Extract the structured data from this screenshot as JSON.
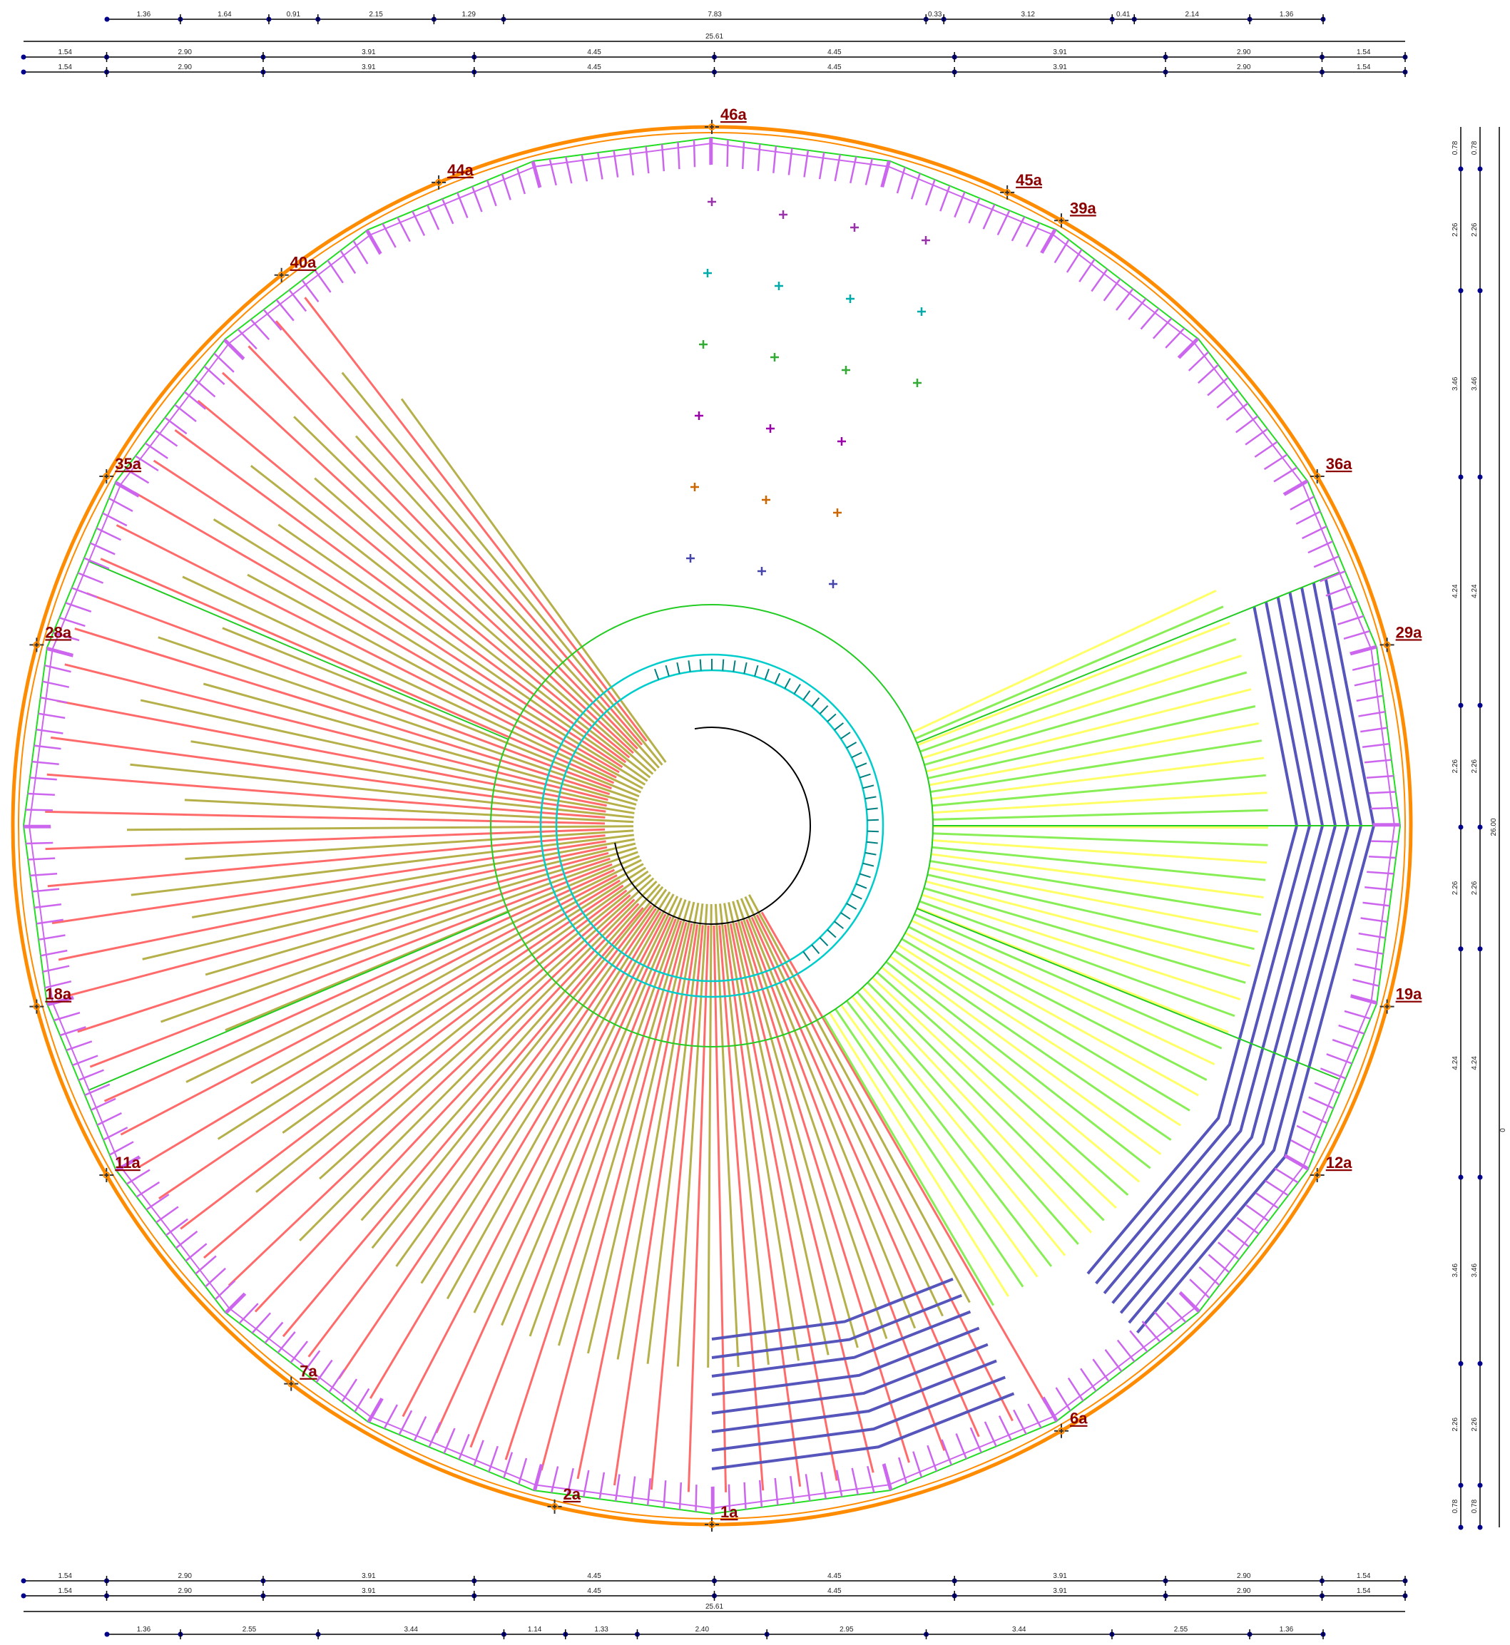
{
  "colors": {
    "outer_circle": "#ff8c00",
    "polygon": "#22dd22",
    "ring_green": "#22cc22",
    "ring_cyan": "#00cccc",
    "ring_black": "#000000",
    "tick_teal": "#008080",
    "radial_red": "#ff6b6b",
    "radial_olive": "#b5b04a",
    "radial_yellow": "#ffff66",
    "radial_lightgreen": "#88ee55",
    "radial_blue": "#5555bb",
    "edge_purple": "#cc66ee",
    "axis_label": "#8b0000",
    "dim_line": "#000000",
    "dim_node": "#00008b"
  },
  "axis_labels": [
    "1a",
    "2a",
    "6a",
    "7a",
    "11a",
    "12a",
    "18a",
    "19a",
    "28a",
    "29a",
    "35a",
    "36a",
    "39a",
    "40a",
    "44a",
    "45a",
    "46a"
  ],
  "top_dimensions": {
    "row1": [
      "1.36",
      "1.64",
      "0.91",
      "2.15",
      "1.29",
      "7.83",
      "0.33",
      "3.12",
      "0.41",
      "2.14",
      "1.36"
    ],
    "total": "25.61",
    "row3": [
      "1.54",
      "2.90",
      "3.91",
      "4.45",
      "4.45",
      "3.91",
      "2.90",
      "1.54"
    ],
    "row4": [
      "1.54",
      "2.90",
      "3.91",
      "4.45",
      "4.45",
      "3.91",
      "2.90",
      "1.54"
    ]
  },
  "bottom_dimensions": {
    "row1": [
      "1.54",
      "2.90",
      "3.91",
      "4.45",
      "4.45",
      "3.91",
      "2.90",
      "1.54"
    ],
    "row2": [
      "1.54",
      "2.90",
      "3.91",
      "4.45",
      "4.45",
      "3.91",
      "2.90",
      "1.54"
    ],
    "total": "25.61",
    "row4": [
      "1.36",
      "2.55",
      "3.44",
      "1.14",
      "1.33",
      "2.40",
      "2.95",
      "3.44",
      "2.55",
      "1.36"
    ]
  },
  "right_dimensions": {
    "col1": [
      "0.78",
      "2.26",
      "3.46",
      "4.24",
      "2.26",
      "2.26",
      "4.24",
      "3.46",
      "2.26",
      "0.78"
    ],
    "col2": [
      "0.78",
      "2.26",
      "3.46",
      "4.24",
      "2.26",
      "2.26",
      "4.24",
      "3.46",
      "2.26",
      "0.78"
    ],
    "total": "26.00",
    "side": "0"
  }
}
